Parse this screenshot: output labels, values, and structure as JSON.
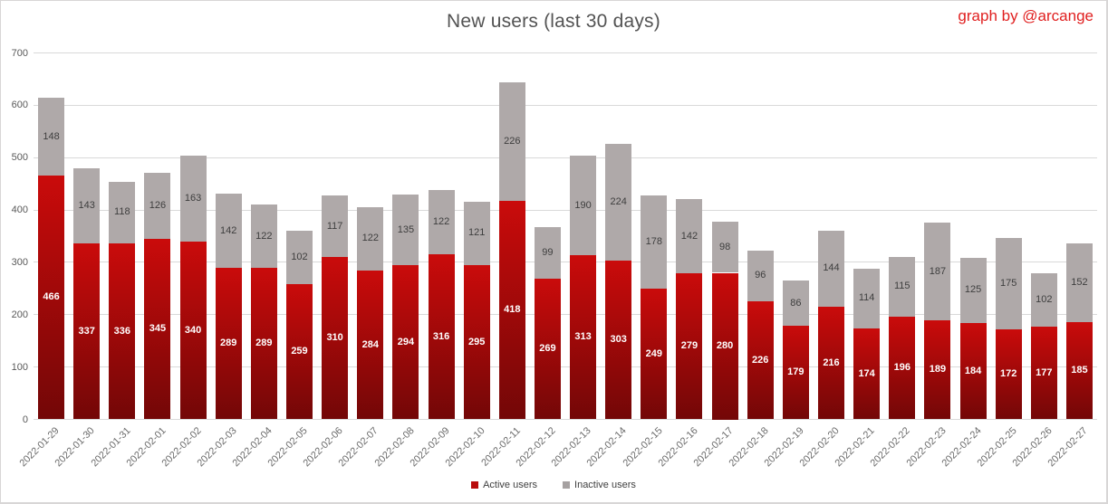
{
  "title": "New users (last 30 days)",
  "credit": "graph by @arcange",
  "colors": {
    "active_gradient_top": "#ca0b0b",
    "active_gradient_bottom": "#730707",
    "inactive_fill": "#afa9a9",
    "credit_text": "#e01f1f",
    "gridline": "#d9d9d9",
    "y_tick_text": "#595959",
    "x_tick_text": "#6b6b6b",
    "title_text": "#535353",
    "active_value_text": "#ffffff",
    "inactive_value_text": "#3e3e3e",
    "legend_active_swatch": "#b90c0c",
    "legend_inactive_swatch": "#a6a1a1"
  },
  "chart_data": {
    "type": "bar",
    "stacked": true,
    "title": "New users (last 30 days)",
    "xlabel": "",
    "ylabel": "",
    "ylim": [
      0,
      700
    ],
    "yticks": [
      0,
      100,
      200,
      300,
      400,
      500,
      600,
      700
    ],
    "grid": true,
    "legend_position": "bottom",
    "categories": [
      "2022-01-29",
      "2022-01-30",
      "2022-01-31",
      "2022-02-01",
      "2022-02-02",
      "2022-02-03",
      "2022-02-04",
      "2022-02-05",
      "2022-02-06",
      "2022-02-07",
      "2022-02-08",
      "2022-02-09",
      "2022-02-10",
      "2022-02-11",
      "2022-02-12",
      "2022-02-13",
      "2022-02-14",
      "2022-02-15",
      "2022-02-16",
      "2022-02-17",
      "2022-02-18",
      "2022-02-19",
      "2022-02-20",
      "2022-02-21",
      "2022-02-22",
      "2022-02-23",
      "2022-02-24",
      "2022-02-25",
      "2022-02-26",
      "2022-02-27"
    ],
    "series": [
      {
        "name": "Active users",
        "values": [
          466,
          337,
          336,
          345,
          340,
          289,
          289,
          259,
          310,
          284,
          294,
          316,
          295,
          418,
          269,
          313,
          303,
          249,
          279,
          280,
          226,
          179,
          216,
          174,
          196,
          189,
          184,
          172,
          177,
          185
        ]
      },
      {
        "name": "Inactive users",
        "values": [
          148,
          143,
          118,
          126,
          163,
          142,
          122,
          102,
          117,
          122,
          135,
          122,
          121,
          226,
          99,
          190,
          224,
          178,
          142,
          98,
          96,
          86,
          144,
          114,
          115,
          187,
          125,
          175,
          102,
          152
        ]
      }
    ]
  }
}
